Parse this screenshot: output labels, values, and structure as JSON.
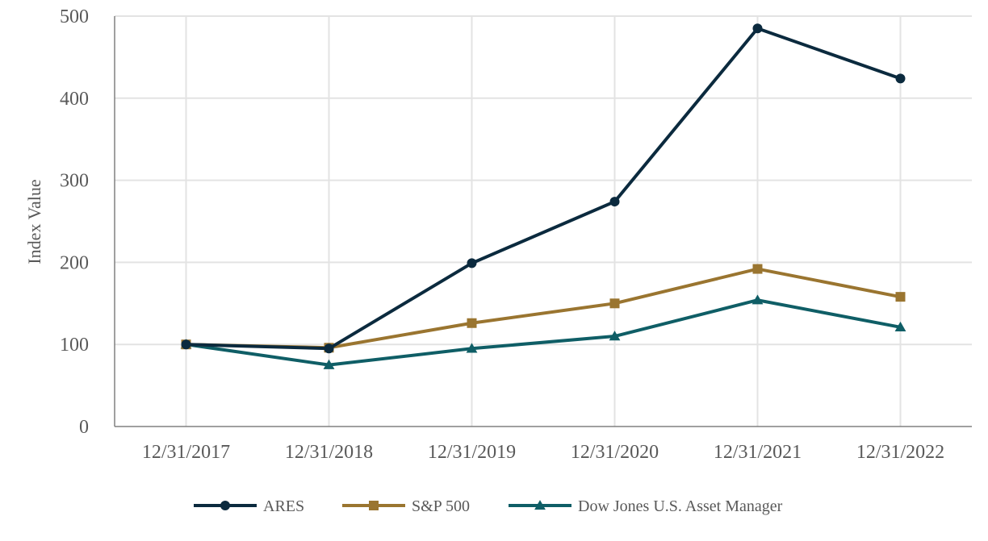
{
  "chart_data": {
    "type": "line",
    "title": "",
    "xlabel": "",
    "ylabel": "Index Value",
    "categories": [
      "12/31/2017",
      "12/31/2018",
      "12/31/2019",
      "12/31/2020",
      "12/31/2021",
      "12/31/2022"
    ],
    "ylim": [
      0,
      500
    ],
    "yticks": [
      0,
      100,
      200,
      300,
      400,
      500
    ],
    "grid": true,
    "legend_position": "bottom",
    "series": [
      {
        "name": "ARES",
        "color": "#0b2a3e",
        "marker": "circle",
        "values": [
          100,
          95,
          199,
          274,
          485,
          424
        ]
      },
      {
        "name": "S&P 500",
        "color": "#9a7530",
        "marker": "square",
        "values": [
          100,
          96,
          126,
          150,
          192,
          158
        ]
      },
      {
        "name": "Dow Jones U.S. Asset Manager",
        "color": "#0f5e66",
        "marker": "triangle",
        "values": [
          100,
          75,
          95,
          110,
          154,
          121
        ]
      }
    ]
  }
}
